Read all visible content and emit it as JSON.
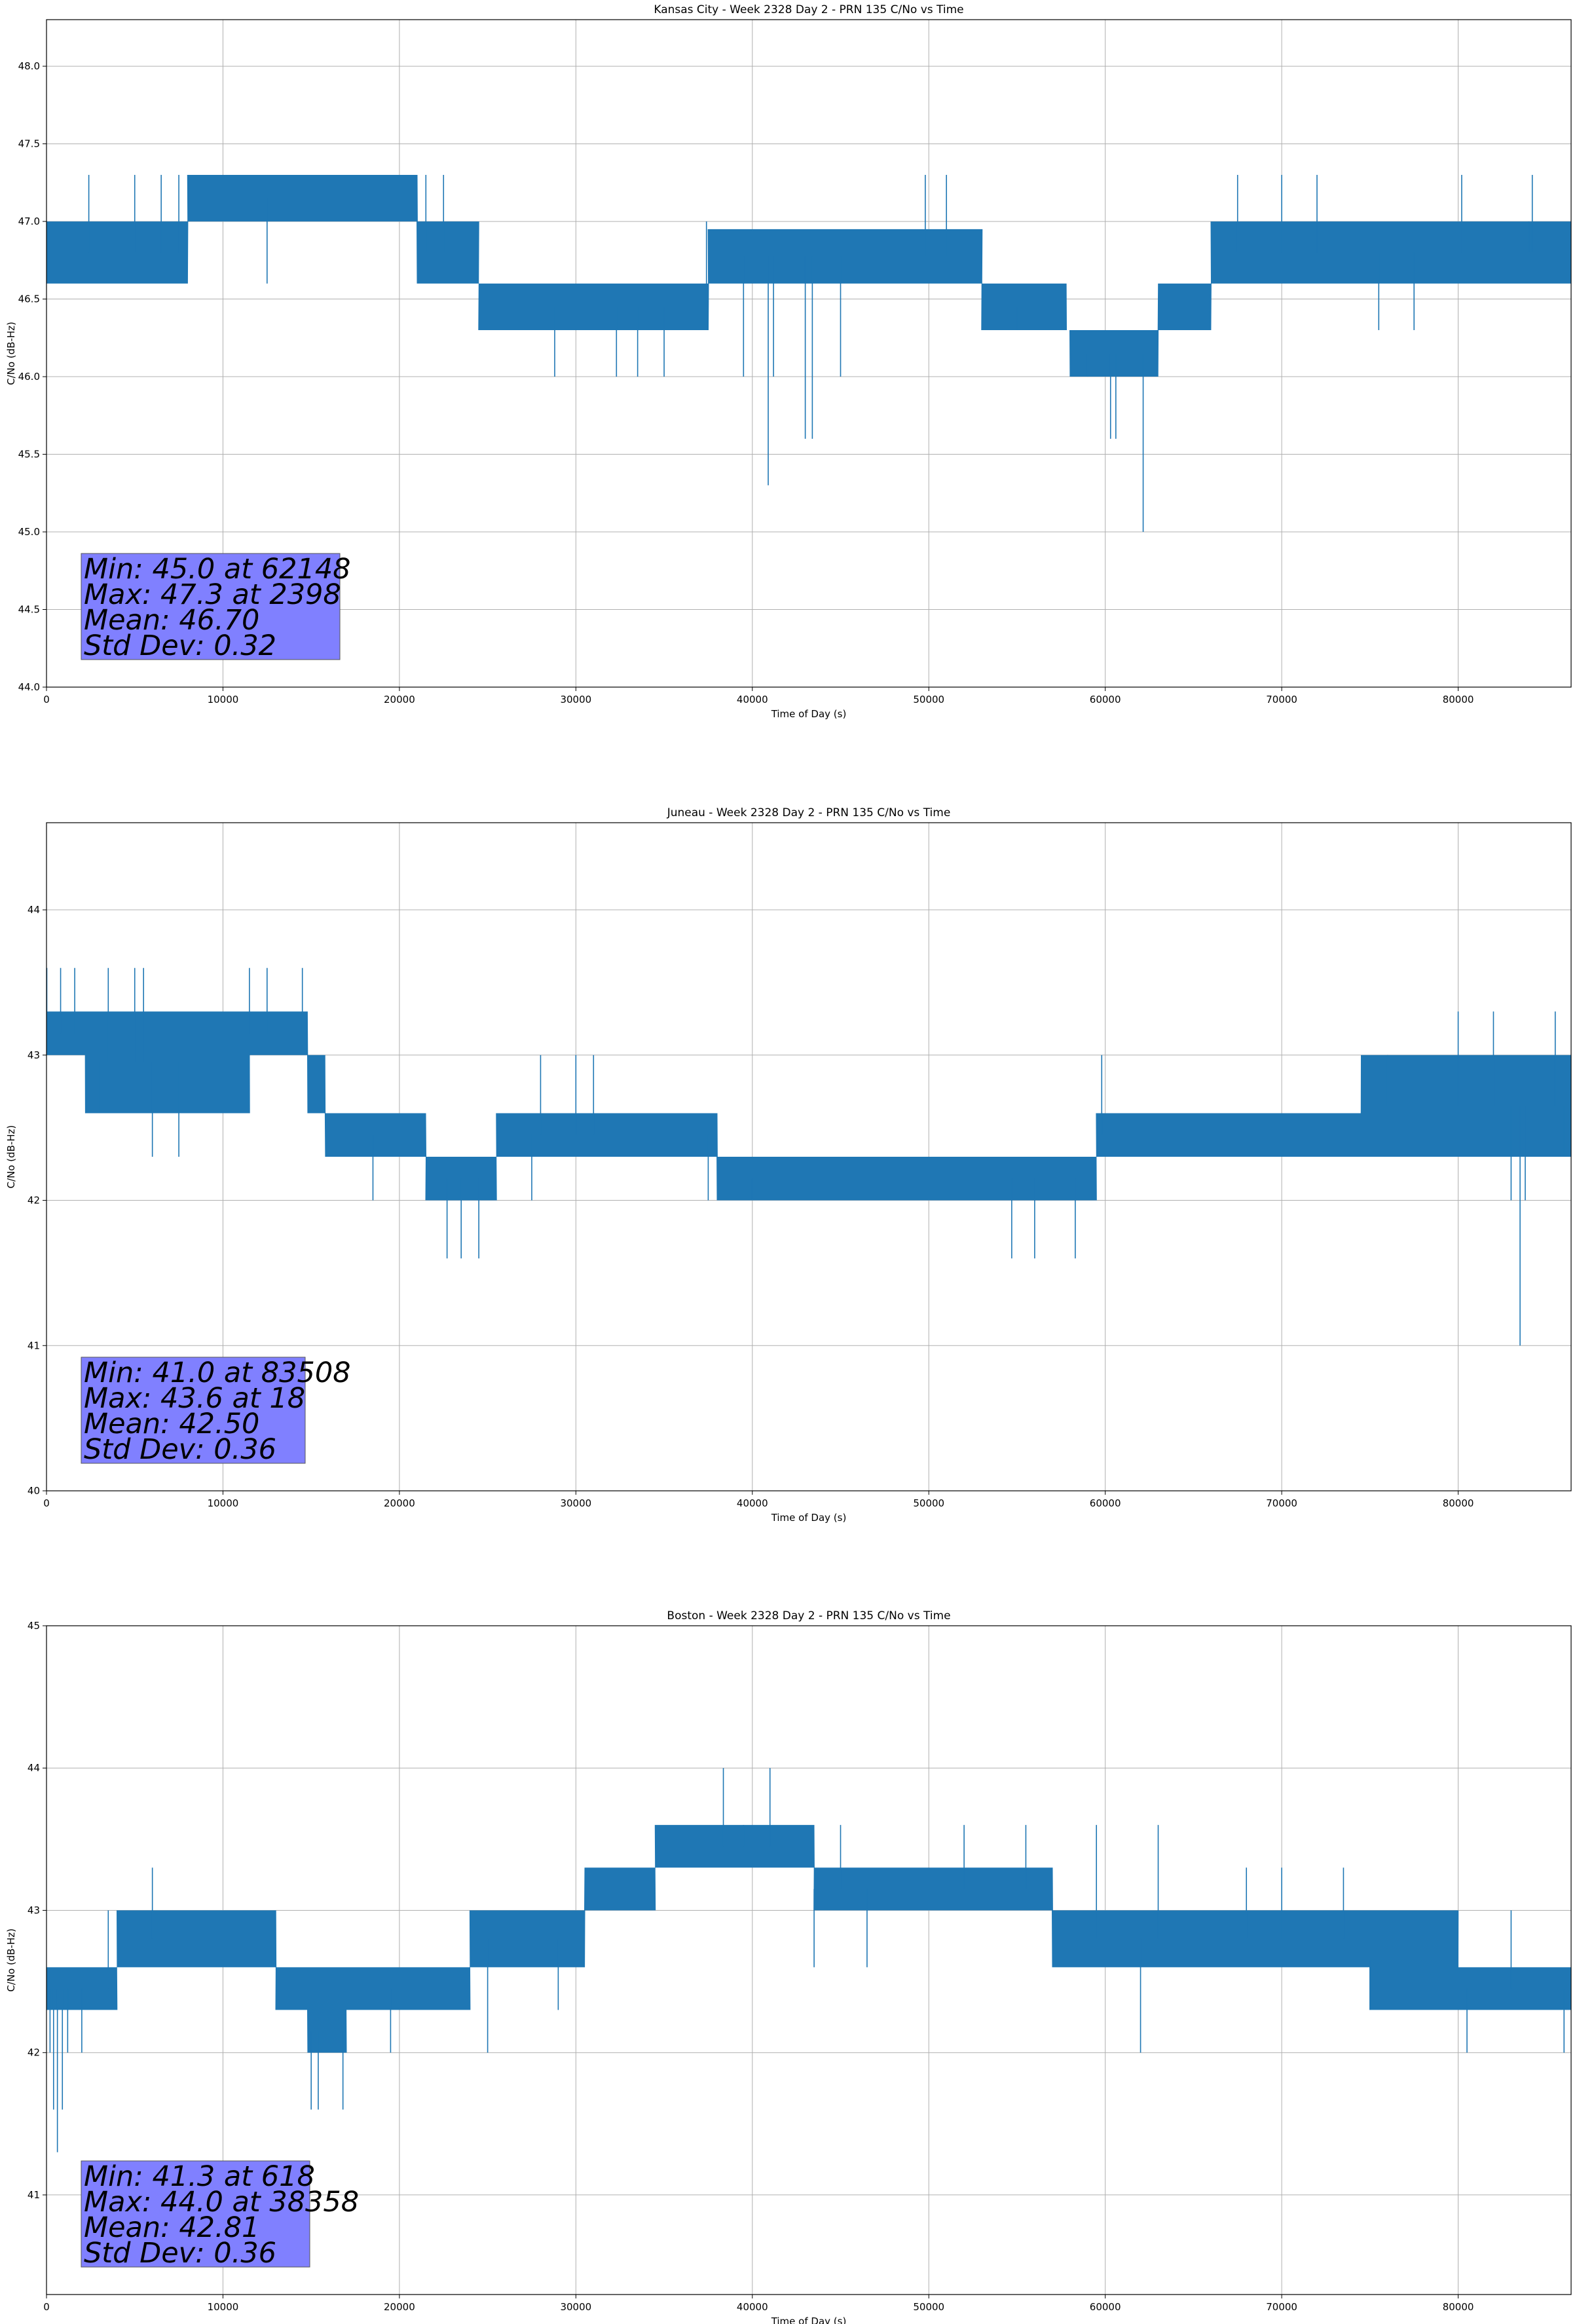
{
  "chart_data": [
    {
      "type": "line",
      "title": "Kansas City - Week 2328 Day 2 - PRN 135 C/No vs Time",
      "xlabel": "Time of Day (s)",
      "ylabel": "C/No (dB-Hz)",
      "xlim": [
        0,
        86400
      ],
      "ylim": [
        44.0,
        48.3
      ],
      "xticks": [
        0,
        10000,
        20000,
        30000,
        40000,
        50000,
        60000,
        70000,
        80000
      ],
      "yticks": [
        44.0,
        44.5,
        45.0,
        45.5,
        46.0,
        46.5,
        47.0,
        47.5,
        48.0
      ],
      "ytick_labels": [
        "44.0",
        "44.5",
        "45.0",
        "45.5",
        "46.0",
        "46.5",
        "47.0",
        "47.5",
        "48.0"
      ],
      "grid": true,
      "color": "#1f77b4",
      "stats": [
        "Min: 45.0 at 62148",
        "Max: 47.3 at 2398",
        "Mean: 46.70",
        "Std Dev: 0.32"
      ],
      "series": [
        {
          "bands": [
            {
              "x": [
                0,
                8000
              ],
              "lo": 46.6,
              "hi": 47.0
            },
            {
              "x": [
                8000,
                21000
              ],
              "lo": 47.0,
              "hi": 47.3
            },
            {
              "x": [
                21000,
                24500
              ],
              "lo": 46.6,
              "hi": 47.0
            },
            {
              "x": [
                24500,
                37500
              ],
              "lo": 46.3,
              "hi": 46.6
            },
            {
              "x": [
                37500,
                53000
              ],
              "lo": 46.6,
              "hi": 46.95
            },
            {
              "x": [
                53000,
                57800
              ],
              "lo": 46.3,
              "hi": 46.6
            },
            {
              "x": [
                58000,
                63000
              ],
              "lo": 46.0,
              "hi": 46.3
            },
            {
              "x": [
                63000,
                66000
              ],
              "lo": 46.3,
              "hi": 46.6
            },
            {
              "x": [
                66000,
                86400
              ],
              "lo": 46.6,
              "hi": 47.0
            }
          ],
          "spikes": [
            [
              2398,
              47.3
            ],
            [
              5000,
              47.3
            ],
            [
              6500,
              47.3
            ],
            [
              7500,
              47.3
            ],
            [
              12500,
              46.6
            ],
            [
              21500,
              47.3
            ],
            [
              22500,
              47.3
            ],
            [
              28800,
              46.0
            ],
            [
              32300,
              46.0
            ],
            [
              33500,
              46.0
            ],
            [
              35000,
              46.0
            ],
            [
              37400,
              47.0
            ],
            [
              39500,
              46.0
            ],
            [
              40900,
              45.3
            ],
            [
              41200,
              46.0
            ],
            [
              43000,
              45.6
            ],
            [
              43400,
              45.6
            ],
            [
              45000,
              46.0
            ],
            [
              49800,
              47.3
            ],
            [
              51000,
              47.3
            ],
            [
              55000,
              46.3
            ],
            [
              59000,
              46.0
            ],
            [
              60300,
              45.6
            ],
            [
              60600,
              45.6
            ],
            [
              62148,
              45.0
            ],
            [
              67500,
              47.3
            ],
            [
              70000,
              47.3
            ],
            [
              72000,
              47.3
            ],
            [
              75500,
              46.3
            ],
            [
              77500,
              46.3
            ],
            [
              80200,
              47.3
            ],
            [
              84000,
              47.0
            ],
            [
              84200,
              47.3
            ]
          ]
        }
      ]
    },
    {
      "type": "line",
      "title": "Juneau - Week 2328 Day 2 - PRN 135 C/No vs Time",
      "xlabel": "Time of Day (s)",
      "ylabel": "C/No (dB-Hz)",
      "xlim": [
        0,
        86400
      ],
      "ylim": [
        40,
        44.6
      ],
      "xticks": [
        0,
        10000,
        20000,
        30000,
        40000,
        50000,
        60000,
        70000,
        80000
      ],
      "yticks": [
        40,
        41,
        42,
        43,
        44
      ],
      "ytick_labels": [
        "40",
        "41",
        "42",
        "43",
        "44"
      ],
      "grid": true,
      "color": "#1f77b4",
      "stats": [
        "Min: 41.0 at 83508",
        "Max: 43.6 at 18",
        "Mean: 42.50",
        "Std Dev: 0.36"
      ],
      "series": [
        {
          "bands": [
            {
              "x": [
                0,
                2200
              ],
              "lo": 43.0,
              "hi": 43.3
            },
            {
              "x": [
                2200,
                11500
              ],
              "lo": 42.6,
              "hi": 43.3
            },
            {
              "x": [
                11500,
                14800
              ],
              "lo": 43.0,
              "hi": 43.3
            },
            {
              "x": [
                14800,
                15800
              ],
              "lo": 42.6,
              "hi": 43.0
            },
            {
              "x": [
                15800,
                21500
              ],
              "lo": 42.3,
              "hi": 42.6
            },
            {
              "x": [
                21500,
                25500
              ],
              "lo": 42.0,
              "hi": 42.3
            },
            {
              "x": [
                25500,
                38000
              ],
              "lo": 42.3,
              "hi": 42.6
            },
            {
              "x": [
                38000,
                59500
              ],
              "lo": 42.0,
              "hi": 42.3
            },
            {
              "x": [
                59500,
                74500
              ],
              "lo": 42.3,
              "hi": 42.6
            },
            {
              "x": [
                74500,
                86400
              ],
              "lo": 42.3,
              "hi": 43.0
            }
          ],
          "spikes": [
            [
              18,
              43.6
            ],
            [
              800,
              43.6
            ],
            [
              1600,
              43.6
            ],
            [
              3000,
              42.6
            ],
            [
              3500,
              43.6
            ],
            [
              5000,
              43.6
            ],
            [
              5500,
              43.6
            ],
            [
              6000,
              42.3
            ],
            [
              11500,
              43.6
            ],
            [
              12500,
              43.6
            ],
            [
              14500,
              43.6
            ],
            [
              7500,
              42.3
            ],
            [
              18500,
              42.0
            ],
            [
              22700,
              41.6
            ],
            [
              23500,
              41.6
            ],
            [
              24500,
              41.6
            ],
            [
              27500,
              42.0
            ],
            [
              28000,
              43.0
            ],
            [
              30000,
              43.0
            ],
            [
              31000,
              43.0
            ],
            [
              37500,
              42.0
            ],
            [
              40000,
              42.0
            ],
            [
              54700,
              41.6
            ],
            [
              56000,
              41.6
            ],
            [
              58300,
              41.6
            ],
            [
              59800,
              43.0
            ],
            [
              76000,
              43.0
            ],
            [
              80000,
              43.3
            ],
            [
              82000,
              43.3
            ],
            [
              83000,
              42.0
            ],
            [
              83508,
              41.0
            ],
            [
              83800,
              42.0
            ],
            [
              85500,
              43.3
            ],
            [
              86000,
              42.3
            ]
          ]
        }
      ]
    },
    {
      "type": "line",
      "title": "Boston - Week 2328 Day 2 - PRN 135 C/No vs Time",
      "xlabel": "Time of Day (s)",
      "ylabel": "C/No (dB-Hz)",
      "xlim": [
        0,
        86400
      ],
      "ylim": [
        40.3,
        45
      ],
      "xticks": [
        0,
        10000,
        20000,
        30000,
        40000,
        50000,
        60000,
        70000,
        80000
      ],
      "yticks": [
        41,
        42,
        43,
        44,
        45
      ],
      "ytick_labels": [
        "41",
        "42",
        "43",
        "44",
        "45"
      ],
      "grid": true,
      "color": "#1f77b4",
      "stats": [
        "Min: 41.3 at 618",
        "Max: 44.0 at 38358",
        "Mean: 42.81",
        "Std Dev: 0.36"
      ],
      "series": [
        {
          "bands": [
            {
              "x": [
                0,
                1500
              ],
              "lo": 42.3,
              "hi": 42.6
            },
            {
              "x": [
                1500,
                4000
              ],
              "lo": 42.3,
              "hi": 42.6
            },
            {
              "x": [
                4000,
                13000
              ],
              "lo": 42.6,
              "hi": 43.0
            },
            {
              "x": [
                13000,
                17000
              ],
              "lo": 42.3,
              "hi": 42.6
            },
            {
              "x": [
                14800,
                17000
              ],
              "lo": 42.0,
              "hi": 42.3
            },
            {
              "x": [
                17000,
                24000
              ],
              "lo": 42.3,
              "hi": 42.6
            },
            {
              "x": [
                24000,
                30500
              ],
              "lo": 42.6,
              "hi": 43.0
            },
            {
              "x": [
                30500,
                34500
              ],
              "lo": 43.0,
              "hi": 43.3
            },
            {
              "x": [
                34500,
                43500
              ],
              "lo": 43.3,
              "hi": 43.6
            },
            {
              "x": [
                43500,
                57000
              ],
              "lo": 43.0,
              "hi": 43.3
            },
            {
              "x": [
                57000,
                75000
              ],
              "lo": 42.6,
              "hi": 43.0
            },
            {
              "x": [
                75000,
                80000
              ],
              "lo": 42.3,
              "hi": 43.0
            },
            {
              "x": [
                80000,
                86400
              ],
              "lo": 42.3,
              "hi": 42.6
            }
          ],
          "spikes": [
            [
              200,
              42.0
            ],
            [
              400,
              41.6
            ],
            [
              618,
              41.3
            ],
            [
              900,
              41.6
            ],
            [
              1200,
              42.0
            ],
            [
              2000,
              42.0
            ],
            [
              3500,
              43.0
            ],
            [
              6000,
              43.3
            ],
            [
              15000,
              41.6
            ],
            [
              15400,
              41.6
            ],
            [
              16800,
              41.6
            ],
            [
              19500,
              42.0
            ],
            [
              25000,
              42.0
            ],
            [
              29000,
              42.3
            ],
            [
              38358,
              44.0
            ],
            [
              39500,
              43.6
            ],
            [
              41000,
              44.0
            ],
            [
              43500,
              42.6
            ],
            [
              45000,
              43.6
            ],
            [
              46500,
              42.6
            ],
            [
              52000,
              43.6
            ],
            [
              55500,
              43.6
            ],
            [
              59500,
              43.6
            ],
            [
              62000,
              42.0
            ],
            [
              63000,
              43.6
            ],
            [
              68000,
              43.3
            ],
            [
              70000,
              43.3
            ],
            [
              73500,
              43.3
            ],
            [
              75000,
              42.3
            ],
            [
              80500,
              42.0
            ],
            [
              83000,
              43.0
            ],
            [
              86000,
              42.0
            ]
          ]
        }
      ]
    }
  ]
}
